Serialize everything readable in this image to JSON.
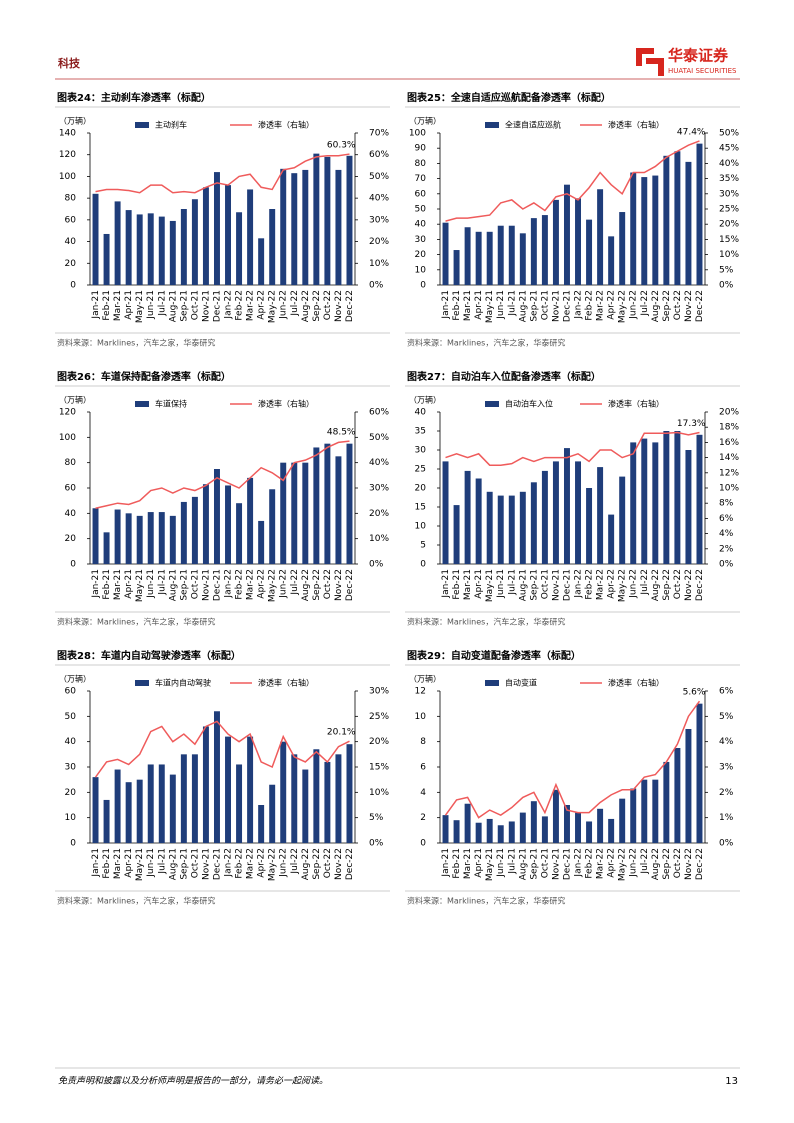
{
  "header": {
    "section": "科技",
    "brand": "华泰证券",
    "brand_en": "HUATAI SECURITIES"
  },
  "footer": {
    "disclaimer": "免责声明和披露以及分析师声明是报告的一部分，请务必一起阅读。",
    "page": "13"
  },
  "chart_data": [
    {
      "type": "bar",
      "title": "图表24：主动刹车渗透率（标配）",
      "unit": "（万辆）",
      "source": "资料来源：Marklines，汽车之家，华泰研究",
      "categories": [
        "Jan-21",
        "Feb-21",
        "Mar-21",
        "Apr-21",
        "May-21",
        "Jun-21",
        "Jul-21",
        "Aug-21",
        "Sep-21",
        "Oct-21",
        "Nov-21",
        "Dec-21",
        "Jan-22",
        "Feb-22",
        "Mar-22",
        "Apr-22",
        "May-22",
        "Jun-22",
        "Jul-22",
        "Aug-22",
        "Sep-22",
        "Oct-22",
        "Nov-22",
        "Dec-22"
      ],
      "series": [
        {
          "name": "主动刹车",
          "color": "#1f3d7a",
          "values": [
            84,
            47,
            77,
            69,
            65,
            66,
            63,
            59,
            70,
            79,
            90,
            104,
            92,
            67,
            88,
            43,
            70,
            107,
            103,
            106,
            121,
            118,
            106,
            119
          ]
        },
        {
          "name": "渗透率（右轴）",
          "color": "#ef5b5b",
          "axis": "y2",
          "values": [
            43,
            44,
            44,
            43.5,
            42.5,
            46,
            46,
            42.5,
            43,
            42.5,
            45,
            47,
            46,
            50,
            51,
            45,
            44,
            53,
            54,
            57,
            59,
            59.5,
            59.5,
            60.3
          ],
          "value_labels": [
            null,
            null,
            null,
            null,
            null,
            null,
            null,
            null,
            null,
            null,
            null,
            null,
            null,
            null,
            null,
            null,
            null,
            null,
            null,
            null,
            null,
            null,
            null,
            "60.3%"
          ]
        }
      ],
      "ylim": [
        0,
        140
      ],
      "yticks": [
        0,
        20,
        40,
        60,
        80,
        100,
        120,
        140
      ],
      "y2lim": [
        0,
        70
      ],
      "y2ticks": [
        {
          "value": 0,
          "label": "0%"
        },
        {
          "value": 10,
          "label": "10%"
        },
        {
          "value": 20,
          "label": "20%"
        },
        {
          "value": 30,
          "label": "30%"
        },
        {
          "value": 40,
          "label": "40%"
        },
        {
          "value": 50,
          "label": "50%"
        },
        {
          "value": 60,
          "label": "60%"
        },
        {
          "value": 70,
          "label": "70%"
        }
      ]
    },
    {
      "type": "bar",
      "title": "图表25：全速自适应巡航配备渗透率（标配）",
      "unit": "（万辆）",
      "source": "资料来源：Marklines，汽车之家，华泰研究",
      "categories": [
        "Jan-21",
        "Feb-21",
        "Mar-21",
        "Apr-21",
        "May-21",
        "Jun-21",
        "Jul-21",
        "Aug-21",
        "Sep-21",
        "Oct-21",
        "Nov-21",
        "Dec-21",
        "Jan-22",
        "Feb-22",
        "Mar-22",
        "Apr-22",
        "May-22",
        "Jun-22",
        "Jul-22",
        "Aug-22",
        "Sep-22",
        "Oct-22",
        "Nov-22",
        "Dec-22"
      ],
      "series": [
        {
          "name": "全速自适应巡航",
          "color": "#1f3d7a",
          "values": [
            41,
            23,
            38,
            35,
            35,
            39,
            39,
            34,
            44,
            46,
            56,
            66,
            57,
            43,
            63,
            32,
            48,
            74,
            71,
            72,
            85,
            88,
            81,
            93
          ]
        },
        {
          "name": "渗透率（右轴）",
          "color": "#ef5b5b",
          "axis": "y2",
          "values": [
            21,
            22,
            22,
            22.5,
            23,
            27,
            28,
            25,
            27,
            24.5,
            29,
            30,
            28,
            32,
            37,
            33,
            30,
            37,
            37,
            39,
            42,
            44,
            46,
            47.4
          ],
          "value_labels": [
            null,
            null,
            null,
            null,
            null,
            null,
            null,
            null,
            null,
            null,
            null,
            null,
            null,
            null,
            null,
            null,
            null,
            null,
            null,
            null,
            null,
            null,
            null,
            "47.4%"
          ]
        }
      ],
      "ylim": [
        0,
        100
      ],
      "yticks": [
        0,
        10,
        20,
        30,
        40,
        50,
        60,
        70,
        80,
        90,
        100
      ],
      "y2lim": [
        0,
        50
      ],
      "y2ticks": [
        {
          "value": 0,
          "label": "0%"
        },
        {
          "value": 5,
          "label": "5%"
        },
        {
          "value": 10,
          "label": "10%"
        },
        {
          "value": 15,
          "label": "15%"
        },
        {
          "value": 20,
          "label": "20%"
        },
        {
          "value": 25,
          "label": "25%"
        },
        {
          "value": 30,
          "label": "30%"
        },
        {
          "value": 35,
          "label": "35%"
        },
        {
          "value": 40,
          "label": "40%"
        },
        {
          "value": 45,
          "label": "45%"
        },
        {
          "value": 50,
          "label": "50%"
        }
      ]
    },
    {
      "type": "bar",
      "title": "图表26：车道保持配备渗透率（标配）",
      "unit": "（万辆）",
      "source": "资料来源：Marklines，汽车之家，华泰研究",
      "categories": [
        "Jan-21",
        "Feb-21",
        "Mar-21",
        "Apr-21",
        "May-21",
        "Jun-21",
        "Jul-21",
        "Aug-21",
        "Sep-21",
        "Oct-21",
        "Nov-21",
        "Dec-21",
        "Jan-22",
        "Feb-22",
        "Mar-22",
        "Apr-22",
        "May-22",
        "Jun-22",
        "Jul-22",
        "Aug-22",
        "Sep-22",
        "Oct-22",
        "Nov-22",
        "Dec-22"
      ],
      "series": [
        {
          "name": "车道保持",
          "color": "#1f3d7a",
          "values": [
            44,
            25,
            43,
            40,
            38,
            41,
            41,
            38,
            49,
            53,
            63,
            75,
            62,
            48,
            68,
            34,
            59,
            80,
            80,
            80,
            92,
            95,
            85,
            95
          ]
        },
        {
          "name": "渗透率（右轴）",
          "color": "#ef5b5b",
          "axis": "y2",
          "values": [
            22,
            23,
            24,
            23.5,
            25,
            29,
            30,
            28,
            30,
            29,
            31,
            34,
            32,
            30,
            34,
            38,
            36,
            33,
            40,
            41,
            43,
            46,
            48,
            48.5
          ],
          "value_labels": [
            null,
            null,
            null,
            null,
            null,
            null,
            null,
            null,
            null,
            null,
            null,
            null,
            null,
            null,
            null,
            null,
            null,
            null,
            null,
            null,
            null,
            null,
            null,
            "48.5%"
          ]
        }
      ],
      "ylim": [
        0,
        120
      ],
      "yticks": [
        0,
        20,
        40,
        60,
        80,
        100,
        120
      ],
      "y2lim": [
        0,
        60
      ],
      "y2ticks": [
        {
          "value": 0,
          "label": "0%"
        },
        {
          "value": 10,
          "label": "10%"
        },
        {
          "value": 20,
          "label": "20%"
        },
        {
          "value": 30,
          "label": "30%"
        },
        {
          "value": 40,
          "label": "40%"
        },
        {
          "value": 50,
          "label": "50%"
        },
        {
          "value": 60,
          "label": "60%"
        }
      ]
    },
    {
      "type": "bar",
      "title": "图表27：自动泊车入位配备渗透率（标配）",
      "unit": "（万辆）",
      "source": "资料来源：Marklines，汽车之家，华泰研究",
      "categories": [
        "Jan-21",
        "Feb-21",
        "Mar-21",
        "Apr-21",
        "May-21",
        "Jun-21",
        "Jul-21",
        "Aug-21",
        "Sep-21",
        "Oct-21",
        "Nov-21",
        "Dec-21",
        "Jan-22",
        "Feb-22",
        "Mar-22",
        "Apr-22",
        "May-22",
        "Jun-22",
        "Jul-22",
        "Aug-22",
        "Sep-22",
        "Oct-22",
        "Nov-22",
        "Dec-22"
      ],
      "series": [
        {
          "name": "自动泊车入位",
          "color": "#1f3d7a",
          "values": [
            27,
            15.5,
            24.5,
            22.5,
            19,
            18,
            18,
            19,
            21.5,
            24.5,
            27,
            30.5,
            27,
            20,
            25.5,
            13,
            23,
            32,
            33,
            32,
            35,
            35,
            30,
            34
          ]
        },
        {
          "name": "渗透率（右轴）",
          "color": "#ef5b5b",
          "axis": "y2",
          "values": [
            14,
            14.5,
            14,
            14.5,
            13,
            13,
            13.2,
            14,
            13.5,
            14,
            14,
            14,
            14.5,
            13.5,
            15,
            15,
            14,
            14.5,
            17.2,
            17.2,
            17.2,
            17.3,
            17,
            17.3
          ],
          "value_labels": [
            null,
            null,
            null,
            null,
            null,
            null,
            null,
            null,
            null,
            null,
            null,
            null,
            null,
            null,
            null,
            null,
            null,
            null,
            null,
            null,
            null,
            null,
            null,
            "17.3%"
          ]
        }
      ],
      "ylim": [
        0,
        40
      ],
      "yticks": [
        0,
        5,
        10,
        15,
        20,
        25,
        30,
        35,
        40
      ],
      "y2lim": [
        0,
        20
      ],
      "y2ticks": [
        {
          "value": 0,
          "label": "0%"
        },
        {
          "value": 2,
          "label": "2%"
        },
        {
          "value": 4,
          "label": "4%"
        },
        {
          "value": 6,
          "label": "6%"
        },
        {
          "value": 8,
          "label": "8%"
        },
        {
          "value": 10,
          "label": "10%"
        },
        {
          "value": 12,
          "label": "12%"
        },
        {
          "value": 14,
          "label": "14%"
        },
        {
          "value": 16,
          "label": "16%"
        },
        {
          "value": 18,
          "label": "18%"
        },
        {
          "value": 20,
          "label": "20%"
        }
      ]
    },
    {
      "type": "bar",
      "title": "图表28：车道内自动驾驶渗透率（标配）",
      "unit": "（万辆）",
      "source": "资料来源：Marklines，汽车之家，华泰研究",
      "categories": [
        "Jan-21",
        "Feb-21",
        "Mar-21",
        "Apr-21",
        "May-21",
        "Jun-21",
        "Jul-21",
        "Aug-21",
        "Sep-21",
        "Oct-21",
        "Nov-21",
        "Dec-21",
        "Jan-22",
        "Feb-22",
        "Mar-22",
        "Apr-22",
        "May-22",
        "Jun-22",
        "Jul-22",
        "Aug-22",
        "Sep-22",
        "Oct-22",
        "Nov-22",
        "Dec-22"
      ],
      "series": [
        {
          "name": "车道内自动驾驶",
          "color": "#1f3d7a",
          "values": [
            26,
            17,
            29,
            24,
            25,
            31,
            31,
            27,
            35,
            35,
            46,
            52,
            42,
            31,
            42,
            15,
            23,
            40,
            35,
            29,
            37,
            32,
            35,
            39
          ]
        },
        {
          "name": "渗透率（右轴）",
          "color": "#ef5b5b",
          "axis": "y2",
          "values": [
            13,
            16,
            16.5,
            15.5,
            17.5,
            22,
            23,
            20,
            21.5,
            19.5,
            23,
            24,
            21.5,
            20,
            21.5,
            16,
            15,
            21,
            17,
            16,
            18,
            16,
            19,
            20.1
          ],
          "value_labels": [
            null,
            null,
            null,
            null,
            null,
            null,
            null,
            null,
            null,
            null,
            null,
            null,
            null,
            null,
            null,
            null,
            null,
            null,
            null,
            null,
            null,
            null,
            null,
            "20.1%"
          ]
        }
      ],
      "ylim": [
        0,
        60
      ],
      "yticks": [
        0,
        10,
        20,
        30,
        40,
        50,
        60
      ],
      "y2lim": [
        0,
        30
      ],
      "y2ticks": [
        {
          "value": 0,
          "label": "0%"
        },
        {
          "value": 5,
          "label": "5%"
        },
        {
          "value": 10,
          "label": "10%"
        },
        {
          "value": 15,
          "label": "15%"
        },
        {
          "value": 20,
          "label": "20%"
        },
        {
          "value": 25,
          "label": "25%"
        },
        {
          "value": 30,
          "label": "30%"
        }
      ]
    },
    {
      "type": "bar",
      "title": "图表29：自动变道配备渗透率（标配）",
      "unit": "（万辆）",
      "source": "资料来源：Marklines，汽车之家，华泰研究",
      "categories": [
        "Jan-21",
        "Feb-21",
        "Mar-21",
        "Apr-21",
        "May-21",
        "Jun-21",
        "Jul-21",
        "Aug-21",
        "Sep-21",
        "Oct-21",
        "Nov-21",
        "Dec-21",
        "Jan-22",
        "Feb-22",
        "Mar-22",
        "Apr-22",
        "May-22",
        "Jun-22",
        "Jul-22",
        "Aug-22",
        "Sep-22",
        "Oct-22",
        "Nov-22",
        "Dec-22"
      ],
      "series": [
        {
          "name": "自动变道",
          "color": "#1f3d7a",
          "values": [
            2.2,
            1.8,
            3.1,
            1.6,
            1.9,
            1.4,
            1.7,
            2.4,
            3.3,
            2.1,
            4.2,
            3.0,
            2.4,
            1.7,
            2.7,
            1.9,
            3.5,
            4.3,
            5.0,
            5.0,
            6.4,
            7.5,
            9.0,
            11.0
          ]
        },
        {
          "name": "渗透率（右轴）",
          "color": "#ef5b5b",
          "axis": "y2",
          "values": [
            1.1,
            1.7,
            1.8,
            1.0,
            1.3,
            1.1,
            1.4,
            1.8,
            2.0,
            1.2,
            2.3,
            1.3,
            1.2,
            1.2,
            1.6,
            1.9,
            2.1,
            2.1,
            2.6,
            2.7,
            3.2,
            3.9,
            5.0,
            5.6
          ],
          "value_labels": [
            null,
            null,
            null,
            null,
            null,
            null,
            null,
            null,
            null,
            null,
            null,
            null,
            null,
            null,
            null,
            null,
            null,
            null,
            null,
            null,
            null,
            null,
            null,
            "5.6%"
          ]
        }
      ],
      "ylim": [
        0,
        12
      ],
      "yticks": [
        0,
        2,
        4,
        6,
        8,
        10,
        12
      ],
      "y2lim": [
        0,
        6
      ],
      "y2ticks": [
        {
          "value": 0,
          "label": "0%"
        },
        {
          "value": 1,
          "label": "1%"
        },
        {
          "value": 2,
          "label": "2%"
        },
        {
          "value": 3,
          "label": "3%"
        },
        {
          "value": 4,
          "label": "4%"
        },
        {
          "value": 5,
          "label": "5%"
        },
        {
          "value": 6,
          "label": "6%"
        }
      ]
    }
  ]
}
